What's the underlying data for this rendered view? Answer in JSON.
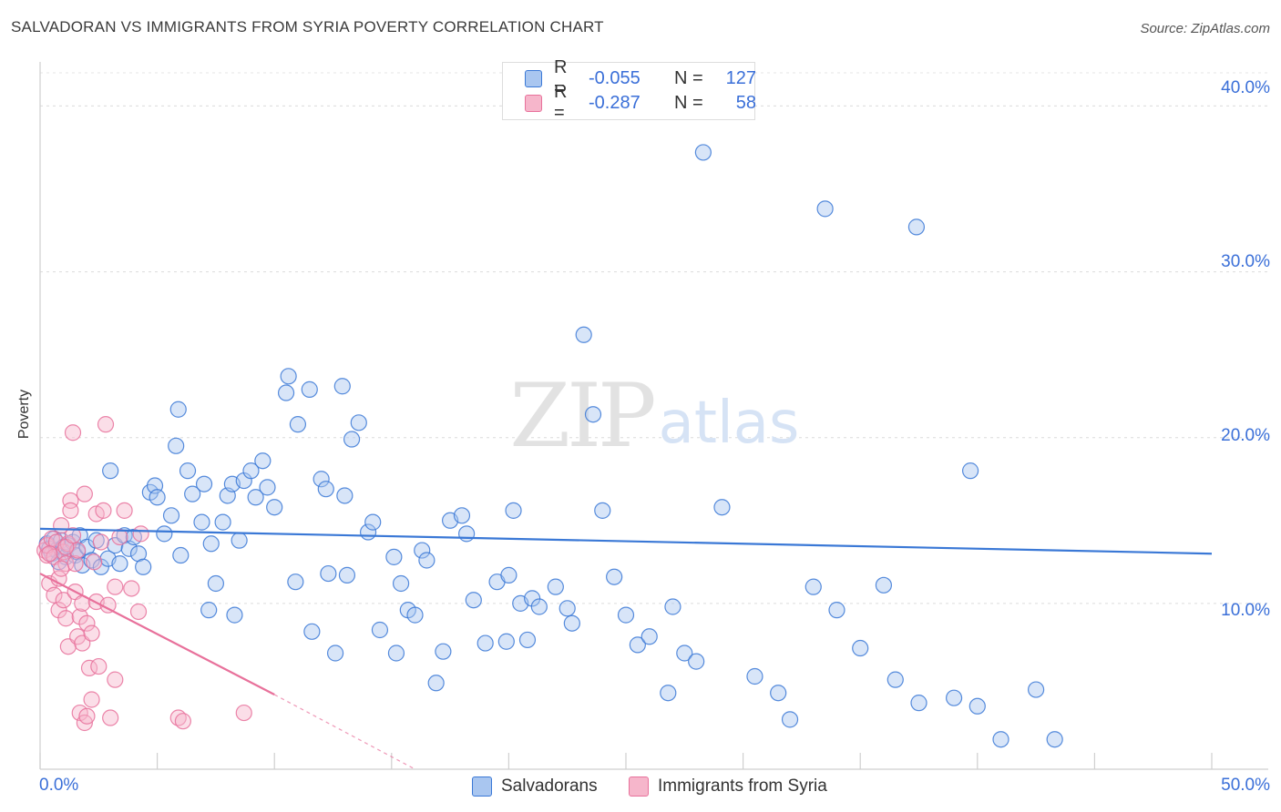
{
  "title": "SALVADORAN VS IMMIGRANTS FROM SYRIA POVERTY CORRELATION CHART",
  "source": "Source: ZipAtlas.com",
  "colors": {
    "blue": "#3a78d6",
    "blue_fill": "#a9c6f0",
    "pink": "#e8719b",
    "pink_fill": "#f6b6cb",
    "accent_text": "#3a6fd8"
  },
  "legend": {
    "rows": [
      {
        "r_label": "R =",
        "r_value": "-0.055",
        "n_label": "N =",
        "n_value": "127"
      },
      {
        "r_label": "R =",
        "r_value": "-0.287",
        "n_label": "N =",
        "n_value": "58"
      }
    ]
  },
  "bottom_legend": {
    "series1": "Salvadorans",
    "series2": "Immigrants from Syria"
  },
  "chart_data": {
    "type": "scatter",
    "title": "SALVADORAN VS IMMIGRANTS FROM SYRIA POVERTY CORRELATION CHART",
    "xlabel": "",
    "ylabel": "Poverty",
    "xlim": [
      0,
      50
    ],
    "ylim": [
      0,
      42
    ],
    "x_tick_labels": [
      "0.0%",
      "50.0%"
    ],
    "y_ticks": [
      10,
      20,
      30,
      40
    ],
    "y_tick_labels": [
      "10.0%",
      "20.0%",
      "30.0%",
      "40.0%"
    ],
    "grid": true,
    "watermark": "ZIPatlas",
    "series": [
      {
        "name": "Salvadorans",
        "r": -0.055,
        "n": 127,
        "trend": {
          "x0": 0,
          "y0": 14.5,
          "x1": 50,
          "y1": 13.0
        },
        "points": [
          [
            0.3,
            13.6
          ],
          [
            0.4,
            13.3
          ],
          [
            0.5,
            13.0
          ],
          [
            0.6,
            13.9
          ],
          [
            0.7,
            13.2
          ],
          [
            0.8,
            12.5
          ],
          [
            0.9,
            13.8
          ],
          [
            1.0,
            13.4
          ],
          [
            1.1,
            12.8
          ],
          [
            1.2,
            13.5
          ],
          [
            1.4,
            13.7
          ],
          [
            1.5,
            12.9
          ],
          [
            1.6,
            13.1
          ],
          [
            1.7,
            14.1
          ],
          [
            1.8,
            12.3
          ],
          [
            2.0,
            13.4
          ],
          [
            2.2,
            12.6
          ],
          [
            2.4,
            13.8
          ],
          [
            2.6,
            12.2
          ],
          [
            2.9,
            12.7
          ],
          [
            3.0,
            18.0
          ],
          [
            3.2,
            13.5
          ],
          [
            3.4,
            12.4
          ],
          [
            3.6,
            14.1
          ],
          [
            3.8,
            13.3
          ],
          [
            4.0,
            14.0
          ],
          [
            4.2,
            13.0
          ],
          [
            4.4,
            12.2
          ],
          [
            4.7,
            16.7
          ],
          [
            4.9,
            17.1
          ],
          [
            5.0,
            16.4
          ],
          [
            5.3,
            14.2
          ],
          [
            5.6,
            15.3
          ],
          [
            5.9,
            21.7
          ],
          [
            5.8,
            19.5
          ],
          [
            6.3,
            18.0
          ],
          [
            6.5,
            16.6
          ],
          [
            6.9,
            14.9
          ],
          [
            7.0,
            17.2
          ],
          [
            7.3,
            13.6
          ],
          [
            7.5,
            11.2
          ],
          [
            7.8,
            14.9
          ],
          [
            8.0,
            16.5
          ],
          [
            8.2,
            17.2
          ],
          [
            8.5,
            13.8
          ],
          [
            8.7,
            17.4
          ],
          [
            9.0,
            18.0
          ],
          [
            9.2,
            16.4
          ],
          [
            9.5,
            18.6
          ],
          [
            9.7,
            17.0
          ],
          [
            10.0,
            15.8
          ],
          [
            10.5,
            22.7
          ],
          [
            10.6,
            23.7
          ],
          [
            11.0,
            20.8
          ],
          [
            11.5,
            22.9
          ],
          [
            12.0,
            17.5
          ],
          [
            12.2,
            16.9
          ],
          [
            12.9,
            23.1
          ],
          [
            13.0,
            16.5
          ],
          [
            13.3,
            19.9
          ],
          [
            13.6,
            20.9
          ],
          [
            14.0,
            14.3
          ],
          [
            14.2,
            14.9
          ],
          [
            14.5,
            8.4
          ],
          [
            15.1,
            12.8
          ],
          [
            15.4,
            11.2
          ],
          [
            15.7,
            9.6
          ],
          [
            16.0,
            9.3
          ],
          [
            16.3,
            13.2
          ],
          [
            16.5,
            12.6
          ],
          [
            16.9,
            5.2
          ],
          [
            17.2,
            7.1
          ],
          [
            17.5,
            15.0
          ],
          [
            18.0,
            15.3
          ],
          [
            18.2,
            14.2
          ],
          [
            18.5,
            10.2
          ],
          [
            19.0,
            7.6
          ],
          [
            19.5,
            11.3
          ],
          [
            19.9,
            7.7
          ],
          [
            20.2,
            15.6
          ],
          [
            20.5,
            10.0
          ],
          [
            20.8,
            7.8
          ],
          [
            21.0,
            10.3
          ],
          [
            21.3,
            9.8
          ],
          [
            22.0,
            11.0
          ],
          [
            22.5,
            9.7
          ],
          [
            22.7,
            8.8
          ],
          [
            23.2,
            26.2
          ],
          [
            23.6,
            21.4
          ],
          [
            24.0,
            15.6
          ],
          [
            24.5,
            11.6
          ],
          [
            25.0,
            9.3
          ],
          [
            25.5,
            7.5
          ],
          [
            26.0,
            8.0
          ],
          [
            26.8,
            4.6
          ],
          [
            27.0,
            9.8
          ],
          [
            27.5,
            7.0
          ],
          [
            28.0,
            6.5
          ],
          [
            29.1,
            15.8
          ],
          [
            30.5,
            5.6
          ],
          [
            31.5,
            4.6
          ],
          [
            32.0,
            3.0
          ],
          [
            33.0,
            11.0
          ],
          [
            34.0,
            9.6
          ],
          [
            35.0,
            7.3
          ],
          [
            36.5,
            5.4
          ],
          [
            37.5,
            4.0
          ],
          [
            39.0,
            4.3
          ],
          [
            40.0,
            3.8
          ],
          [
            41.0,
            1.8
          ],
          [
            42.5,
            4.8
          ],
          [
            43.3,
            1.8
          ],
          [
            28.3,
            37.2
          ],
          [
            33.5,
            33.8
          ],
          [
            37.4,
            32.7
          ],
          [
            39.7,
            18.0
          ],
          [
            36.0,
            11.1
          ],
          [
            20.0,
            11.7
          ],
          [
            15.2,
            7.0
          ],
          [
            12.6,
            7.0
          ],
          [
            8.3,
            9.3
          ],
          [
            11.6,
            8.3
          ],
          [
            10.9,
            11.3
          ],
          [
            13.1,
            11.7
          ],
          [
            7.2,
            9.6
          ],
          [
            12.3,
            11.8
          ],
          [
            6.0,
            12.9
          ]
        ]
      },
      {
        "name": "Immigrants from Syria",
        "r": -0.287,
        "n": 58,
        "trend": {
          "x0": 0,
          "y0": 11.8,
          "x1": 10.0,
          "y1": 4.5,
          "dash_x1": 16.0,
          "dash_y1": 0.0
        },
        "points": [
          [
            0.2,
            13.2
          ],
          [
            0.3,
            12.9
          ],
          [
            0.3,
            13.5
          ],
          [
            0.4,
            11.2
          ],
          [
            0.5,
            13.9
          ],
          [
            0.6,
            10.5
          ],
          [
            0.6,
            12.8
          ],
          [
            0.7,
            13.7
          ],
          [
            0.8,
            9.6
          ],
          [
            0.8,
            11.5
          ],
          [
            0.9,
            14.7
          ],
          [
            1.0,
            13.1
          ],
          [
            1.0,
            10.2
          ],
          [
            1.1,
            12.4
          ],
          [
            1.1,
            9.1
          ],
          [
            1.2,
            7.4
          ],
          [
            1.2,
            13.6
          ],
          [
            1.3,
            16.2
          ],
          [
            1.3,
            15.6
          ],
          [
            1.4,
            20.3
          ],
          [
            1.5,
            12.4
          ],
          [
            1.5,
            10.7
          ],
          [
            1.6,
            13.2
          ],
          [
            1.6,
            8.0
          ],
          [
            1.7,
            9.2
          ],
          [
            1.7,
            3.4
          ],
          [
            1.8,
            10.0
          ],
          [
            1.8,
            7.6
          ],
          [
            1.9,
            16.6
          ],
          [
            1.9,
            2.8
          ],
          [
            2.0,
            8.8
          ],
          [
            2.0,
            3.2
          ],
          [
            2.1,
            6.1
          ],
          [
            2.2,
            4.2
          ],
          [
            2.2,
            8.2
          ],
          [
            2.3,
            12.5
          ],
          [
            2.4,
            15.4
          ],
          [
            2.4,
            10.1
          ],
          [
            2.5,
            6.2
          ],
          [
            2.6,
            13.7
          ],
          [
            2.7,
            15.6
          ],
          [
            2.8,
            20.8
          ],
          [
            2.9,
            9.9
          ],
          [
            3.0,
            3.1
          ],
          [
            3.2,
            5.4
          ],
          [
            3.2,
            11.0
          ],
          [
            3.4,
            14.0
          ],
          [
            3.6,
            15.6
          ],
          [
            3.9,
            10.9
          ],
          [
            4.2,
            9.5
          ],
          [
            4.3,
            14.2
          ],
          [
            5.9,
            3.1
          ],
          [
            6.1,
            2.9
          ],
          [
            8.7,
            3.4
          ],
          [
            1.1,
            13.4
          ],
          [
            0.4,
            13.0
          ],
          [
            0.9,
            12.1
          ],
          [
            1.4,
            14.1
          ]
        ]
      }
    ]
  }
}
